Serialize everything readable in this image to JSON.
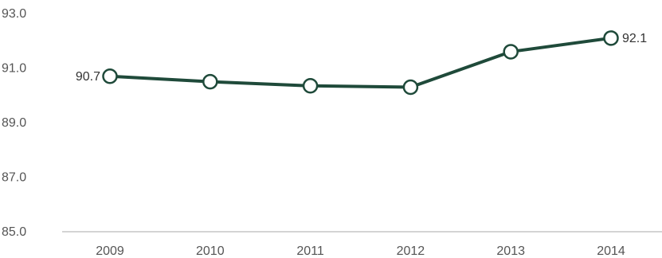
{
  "chart_data": {
    "type": "line",
    "title": "",
    "xlabel": "",
    "ylabel": "",
    "x": [
      "2009",
      "2010",
      "2011",
      "2012",
      "2013",
      "2014"
    ],
    "series": [
      {
        "values": [
          90.7,
          90.5,
          90.35,
          90.3,
          91.6,
          92.1
        ]
      }
    ],
    "ylim": [
      85.0,
      93.0
    ],
    "y_ticks": [
      "85.0",
      "87.0",
      "89.0",
      "91.0",
      "93.0"
    ],
    "data_labels": [
      {
        "index": 0,
        "text": "90.7"
      },
      {
        "index": 5,
        "text": "92.1"
      }
    ],
    "grid": false,
    "colors": {
      "line": "#1f4a3a",
      "marker_fill": "#ffffff",
      "axis": "#aaaaaa"
    }
  }
}
